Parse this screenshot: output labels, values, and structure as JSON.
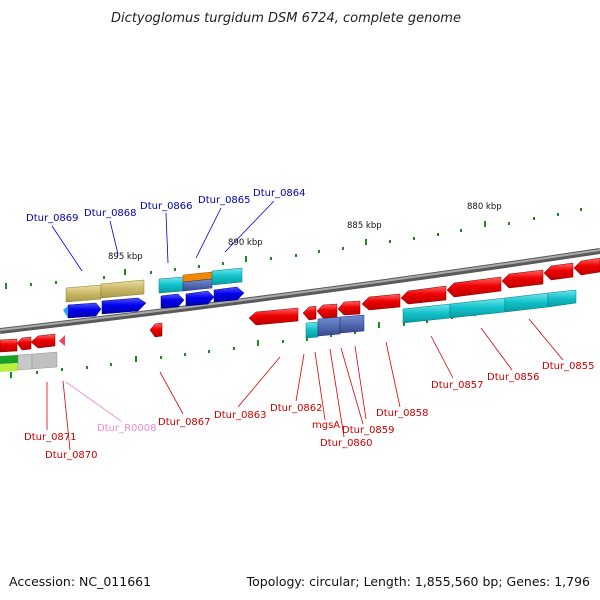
{
  "title": "Dictyoglomus turgidum DSM 6724, complete genome",
  "footer": {
    "accession": "Accession: NC_011661",
    "summary": "Topology: circular; Length: 1,855,560 bp; Genes: 1,796"
  },
  "scale_labels": [
    "895 kbp",
    "890 kbp",
    "885 kbp",
    "880 kbp"
  ],
  "colors": {
    "forward_label": "#0000aa",
    "reverse_label": "#cc0000",
    "rna_label": "#ee88cc",
    "backbone": "#808080",
    "cds_forward": "#0000ee",
    "cds_reverse": "#ee0000",
    "gene_cyan": "#10c0c8",
    "gene_khaki": "#c0b060",
    "gene_orange": "#ee8800",
    "tick_green": "#1a8a1a"
  },
  "genes_top": [
    "Dtur_0869",
    "Dtur_0868",
    "Dtur_0866",
    "Dtur_0865",
    "Dtur_0864"
  ],
  "genes_bottom": [
    "Dtur_0871",
    "Dtur_0870",
    "Dtur_R0008",
    "Dtur_0867",
    "Dtur_0863",
    "Dtur_0862",
    "mgsA",
    "Dtur_0860",
    "Dtur_0859",
    "Dtur_0858",
    "Dtur_0857",
    "Dtur_0856",
    "Dtur_0855"
  ]
}
